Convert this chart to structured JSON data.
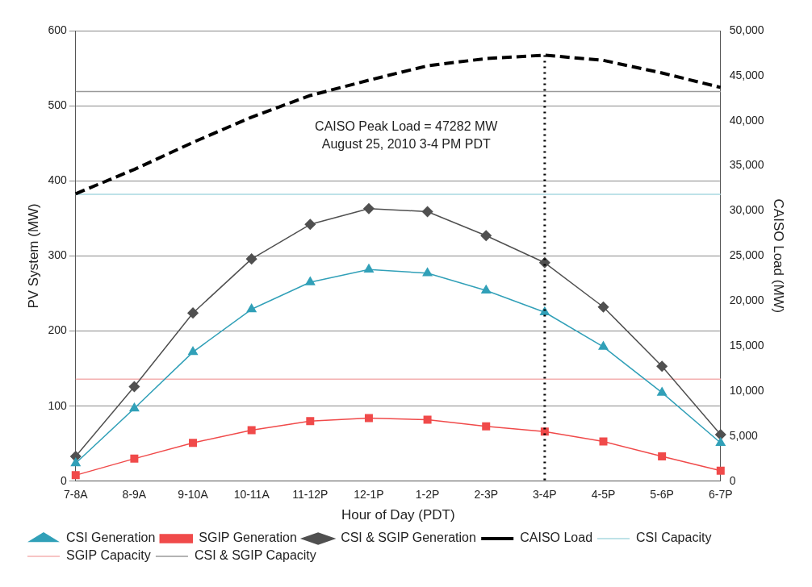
{
  "chart_data": {
    "type": "line",
    "xlabel": "Hour of Day (PDT)",
    "ylabel": "PV System (MW)",
    "y2label": "CAISO Load (MW)",
    "categories": [
      "7-8A",
      "8-9A",
      "9-10A",
      "10-11A",
      "11-12P",
      "12-1P",
      "1-2P",
      "2-3P",
      "3-4P",
      "4-5P",
      "5-6P",
      "6-7P"
    ],
    "series": [
      {
        "name": "CSI Generation",
        "color": "#31a0b8",
        "marker": "triangle",
        "values": [
          24,
          97,
          172,
          229,
          265,
          282,
          277,
          254,
          225,
          179,
          118,
          51
        ]
      },
      {
        "name": "SGIP Generation",
        "color": "#f04a4a",
        "marker": "square",
        "values": [
          8,
          30,
          51,
          68,
          80,
          84,
          82,
          73,
          66,
          53,
          33,
          14
        ]
      },
      {
        "name": "CSI & SGIP Generation",
        "color": "#505050",
        "marker": "diamond",
        "values": [
          33,
          126,
          224,
          296,
          342,
          363,
          359,
          327,
          291,
          232,
          153,
          62
        ]
      },
      {
        "name": "CAISO Load",
        "color": "#000000",
        "marker": "none",
        "line_style": "dashed",
        "axis": "y2",
        "values": [
          31900,
          34600,
          37600,
          40400,
          42800,
          44500,
          46100,
          46900,
          47282,
          46700,
          45300,
          43700
        ]
      },
      {
        "name": "CSI Capacity",
        "color": "#a8d8e0",
        "marker": "none",
        "values": [
          382,
          382,
          382,
          382,
          382,
          382,
          382,
          382,
          382,
          382,
          382,
          382
        ]
      },
      {
        "name": "SGIP Capacity",
        "color": "#f4b0b0",
        "marker": "none",
        "values": [
          136,
          136,
          136,
          136,
          136,
          136,
          136,
          136,
          136,
          136,
          136,
          136
        ]
      },
      {
        "name": "CSI & SGIP Capacity",
        "color": "#9a9a9a",
        "marker": "none",
        "values": [
          519,
          519,
          519,
          519,
          519,
          519,
          519,
          519,
          519,
          519,
          519,
          519
        ]
      }
    ],
    "ylim": [
      0,
      600
    ],
    "yticks": [
      0,
      100,
      200,
      300,
      400,
      500,
      600
    ],
    "y2lim": [
      0,
      50000
    ],
    "y2ticks": [
      {
        "value": 0,
        "label": "0"
      },
      {
        "value": 5000,
        "label": "5,000"
      },
      {
        "value": 10000,
        "label": "10,000"
      },
      {
        "value": 15000,
        "label": "15,000"
      },
      {
        "value": 20000,
        "label": "20,000"
      },
      {
        "value": 25000,
        "label": "25,000"
      },
      {
        "value": 30000,
        "label": "30,000"
      },
      {
        "value": 35000,
        "label": "35,000"
      },
      {
        "value": 40000,
        "label": "40,000"
      },
      {
        "value": 45000,
        "label": "45,000"
      },
      {
        "value": 50000,
        "label": "50,000"
      }
    ],
    "ref_lines": [
      {
        "axis": "x",
        "value": "3-4P",
        "color": "#000000",
        "line_style": "dotted"
      }
    ],
    "annotations": [
      "CAISO Peak Load = 47282 MW",
      "August 25, 2010 3-4 PM PDT"
    ],
    "grid": "y",
    "legend": "bottom"
  }
}
